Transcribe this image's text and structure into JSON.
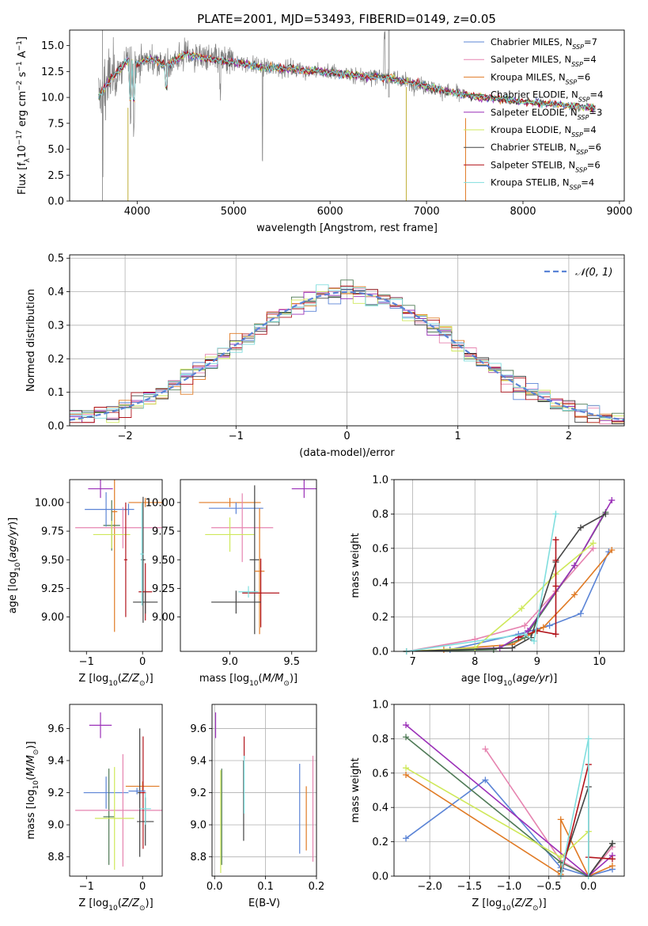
{
  "figure": {
    "title": "PLATE=2001, MJD=53493, FIBERID=0149, z=0.05"
  },
  "chart_data": [
    {
      "id": "spectrum",
      "type": "line",
      "xlabel": "wavelength [Angstrom, rest frame]",
      "ylabel": "Flux [f_λ 10^-17 erg cm^-2 s^-1 A^-1]",
      "xlim": [
        3300,
        9050
      ],
      "ylim": [
        0,
        16.5
      ],
      "xticks": [
        4000,
        5000,
        6000,
        7000,
        8000,
        9000
      ],
      "yticks": [
        0.0,
        2.5,
        5.0,
        7.5,
        10.0,
        12.5,
        15.0
      ],
      "data_color": "#808080",
      "data_range": [
        3600,
        7400
      ],
      "model_range": [
        3600,
        8750
      ],
      "legend_position": "top-right",
      "series": [
        {
          "name": "Chabrier MILES, N_SSP=7",
          "color": "#5b84d6"
        },
        {
          "name": "Salpeter MILES, N_SSP=4",
          "color": "#e684b0"
        },
        {
          "name": "Kroupa MILES, N_SSP=6",
          "color": "#e07a24"
        },
        {
          "name": "Chabrier ELODIE, N_SSP=4",
          "color": "#4f7a56"
        },
        {
          "name": "Salpeter ELODIE, N_SSP=3",
          "color": "#9b30b8"
        },
        {
          "name": "Kroupa ELODIE, N_SSP=4",
          "color": "#cfe85a"
        },
        {
          "name": "Chabrier STELIB, N_SSP=6",
          "color": "#444444"
        },
        {
          "name": "Salpeter STELIB, N_SSP=6",
          "color": "#b2141c"
        },
        {
          "name": "Kroupa STELIB, N_SSP=4",
          "color": "#80dede"
        }
      ],
      "continuum": {
        "x": [
          3600,
          3700,
          3800,
          3900,
          4000,
          4100,
          4200,
          4300,
          4400,
          4500,
          4700,
          4900,
          5100,
          5300,
          5500,
          5800,
          6000,
          6300,
          6600,
          6900,
          7200,
          7500,
          7800,
          8100,
          8400,
          8750
        ],
        "y": [
          10.0,
          11.5,
          12.5,
          13.5,
          13.2,
          13.7,
          13.6,
          13.0,
          13.6,
          14.2,
          13.8,
          13.5,
          13.3,
          12.9,
          12.8,
          12.6,
          12.4,
          12.1,
          11.9,
          11.3,
          10.6,
          10.1,
          9.8,
          9.5,
          9.3,
          9.0
        ]
      }
    },
    {
      "id": "residuals",
      "type": "step-histogram",
      "xlabel": "(data-model)/error",
      "ylabel": "Normed distribution",
      "xlim": [
        -2.5,
        2.5
      ],
      "ylim": [
        0,
        0.51
      ],
      "xticks": [
        -2,
        -1,
        0,
        1,
        2
      ],
      "yticks": [
        0.0,
        0.1,
        0.2,
        0.3,
        0.4,
        0.5
      ],
      "bins": 45,
      "reference_curve": {
        "name": "N(0,1)",
        "label": "𝒩(0, 1)",
        "color": "#5b84d6",
        "style": "dashed"
      },
      "legend_position": "top-right",
      "grid": true
    },
    {
      "id": "age_vs_Z",
      "type": "errorbar",
      "xlabel": "Z [log10(Z/Z⊙)]",
      "ylabel": "age [log10(age/yr)]",
      "xlim": [
        -1.3,
        0.35
      ],
      "ylim": [
        8.7,
        10.2
      ],
      "xticks": [
        -1,
        0
      ],
      "yticks": [
        9.0,
        9.25,
        9.5,
        9.75,
        10.0
      ],
      "points": [
        {
          "color": "#9b30b8",
          "x": -0.75,
          "xerr": 0.22,
          "y": 10.12,
          "yerr": 0.08
        },
        {
          "color": "#e07a24",
          "x": -0.5,
          "xerr": 0.05,
          "y": 9.92,
          "yerr": 1.05
        },
        {
          "color": "#4f7a56",
          "x": -0.55,
          "xerr": 0.15,
          "y": 9.8,
          "yerr": 0.22
        },
        {
          "color": "#5b84d6",
          "x": -0.65,
          "xerr": 0.38,
          "y": 9.94,
          "yerr": 0.15
        },
        {
          "color": "#e684b0",
          "x": -0.35,
          "xerr": 0.85,
          "y": 9.78,
          "yerr": 0.18
        },
        {
          "color": "#cfe85a",
          "x": -0.55,
          "xerr": 0.33,
          "y": 9.72,
          "yerr": 0.12
        },
        {
          "color": "#e07a24",
          "x": 0.05,
          "xerr": 0.3,
          "y": 10.0,
          "yerr": 0.04
        },
        {
          "color": "#444444",
          "x": 0.01,
          "xerr": 0.04,
          "y": 9.5,
          "yerr": 0.55
        },
        {
          "color": "#b2141c",
          "x": 0.05,
          "xerr": 0.12,
          "y": 9.22,
          "yerr": 0.25
        },
        {
          "color": "#444444",
          "x": 0.05,
          "xerr": 0.22,
          "y": 9.13,
          "yerr": 0.1
        },
        {
          "color": "#5b84d6",
          "x": -0.25,
          "xerr": 0.1,
          "y": 9.94,
          "yerr": 0.05
        },
        {
          "color": "#b2141c",
          "x": -0.3,
          "xerr": 0.03,
          "y": 9.5,
          "yerr": 0.5
        },
        {
          "color": "#80dede",
          "x": -0.01,
          "xerr": 0.03,
          "y": 9.55,
          "yerr": 0.45
        }
      ]
    },
    {
      "id": "age_vs_mass",
      "type": "errorbar",
      "xlabel": "mass [log10(M/M⊙)]",
      "ylabel": "",
      "xlim": [
        8.6,
        9.7
      ],
      "ylim": [
        8.7,
        10.2
      ],
      "xticks": [
        9.0,
        9.5
      ],
      "yticks": [
        9.0,
        9.25,
        9.5,
        9.75,
        10.0
      ],
      "points": [
        {
          "color": "#9b30b8",
          "x": 9.6,
          "xerr": 0.1,
          "y": 10.12,
          "yerr": 0.08
        },
        {
          "color": "#e07a24",
          "x": 9.0,
          "xerr": 0.25,
          "y": 10.0,
          "yerr": 0.04
        },
        {
          "color": "#5b84d6",
          "x": 9.05,
          "xerr": 0.22,
          "y": 9.95,
          "yerr": 0.05
        },
        {
          "color": "#e684b0",
          "x": 9.1,
          "xerr": 0.25,
          "y": 9.78,
          "yerr": 0.3
        },
        {
          "color": "#cfe85a",
          "x": 9.0,
          "xerr": 0.2,
          "y": 9.72,
          "yerr": 0.15
        },
        {
          "color": "#444444",
          "x": 9.2,
          "xerr": 0.04,
          "y": 9.5,
          "yerr": 0.65
        },
        {
          "color": "#e07a24",
          "x": 9.24,
          "xerr": 0.04,
          "y": 9.4,
          "yerr": 0.55
        },
        {
          "color": "#b2141c",
          "x": 9.25,
          "xerr": 0.15,
          "y": 9.21,
          "yerr": 0.3
        },
        {
          "color": "#444444",
          "x": 9.05,
          "xerr": 0.2,
          "y": 9.13,
          "yerr": 0.1
        },
        {
          "color": "#80dede",
          "x": 9.15,
          "xerr": 0.08,
          "y": 9.22,
          "yerr": 0.05
        }
      ]
    },
    {
      "id": "massweight_vs_age",
      "type": "line",
      "xlabel": "age [log10(age/yr)]",
      "ylabel": "mass weight",
      "xlim": [
        6.7,
        10.4
      ],
      "ylim": [
        0,
        1.0
      ],
      "xticks": [
        7,
        8,
        9,
        10
      ],
      "yticks": [
        0.0,
        0.2,
        0.4,
        0.6,
        0.8,
        1.0
      ],
      "grid": true,
      "series": [
        {
          "color": "#5b84d6",
          "x": [
            6.9,
            7.6,
            8.7,
            9.2,
            9.7,
            10.15
          ],
          "y": [
            0.0,
            0.01,
            0.1,
            0.15,
            0.22,
            0.58
          ]
        },
        {
          "color": "#e684b0",
          "x": [
            6.9,
            8.0,
            8.8,
            9.3,
            9.9
          ],
          "y": [
            0.0,
            0.07,
            0.15,
            0.35,
            0.6
          ]
        },
        {
          "color": "#e07a24",
          "x": [
            6.9,
            7.5,
            8.6,
            9.1,
            9.6,
            10.2
          ],
          "y": [
            0.0,
            0.01,
            0.04,
            0.14,
            0.33,
            0.59
          ]
        },
        {
          "color": "#4f7a56",
          "x": [
            6.9,
            8.3,
            8.8,
            9.6,
            10.1
          ],
          "y": [
            0.0,
            0.01,
            0.08,
            0.5,
            0.81
          ]
        },
        {
          "color": "#9b30b8",
          "x": [
            6.9,
            8.4,
            8.85,
            9.6,
            10.2
          ],
          "y": [
            0.0,
            0.02,
            0.12,
            0.5,
            0.88
          ]
        },
        {
          "color": "#cfe85a",
          "x": [
            6.9,
            8.0,
            8.75,
            9.3,
            9.9
          ],
          "y": [
            0.0,
            0.02,
            0.25,
            0.45,
            0.63
          ]
        },
        {
          "color": "#444444",
          "x": [
            6.9,
            8.6,
            8.9,
            9.3,
            9.7,
            10.1
          ],
          "y": [
            0.0,
            0.02,
            0.08,
            0.52,
            0.72,
            0.8
          ]
        },
        {
          "color": "#b2141c",
          "x": [
            8.7,
            9.0,
            9.3,
            9.3,
            9.3,
            9.3
          ],
          "y": [
            0.08,
            0.12,
            0.1,
            0.38,
            0.53,
            0.65
          ]
        },
        {
          "color": "#80dede",
          "x": [
            6.9,
            8.8,
            8.95,
            9.3
          ],
          "y": [
            0.0,
            0.1,
            0.06,
            0.8
          ]
        }
      ]
    },
    {
      "id": "mass_vs_Z",
      "type": "errorbar",
      "xlabel": "Z [log10(Z/Z⊙)]",
      "ylabel": "mass [log10(M/M⊙)]",
      "xlim": [
        -1.3,
        0.35
      ],
      "ylim": [
        8.68,
        9.75
      ],
      "xticks": [
        -1,
        0
      ],
      "yticks": [
        8.8,
        9.0,
        9.2,
        9.4,
        9.6
      ],
      "points": [
        {
          "color": "#9b30b8",
          "x": -0.75,
          "xerr": 0.2,
          "y": 9.62,
          "yerr": 0.08
        },
        {
          "color": "#5b84d6",
          "x": -0.65,
          "xerr": 0.4,
          "y": 9.2,
          "yerr": 0.1
        },
        {
          "color": "#4f7a56",
          "x": -0.6,
          "xerr": 0.1,
          "y": 9.05,
          "yerr": 0.3
        },
        {
          "color": "#e684b0",
          "x": -0.35,
          "xerr": 0.85,
          "y": 9.09,
          "yerr": 0.35
        },
        {
          "color": "#cfe85a",
          "x": -0.5,
          "xerr": 0.35,
          "y": 9.04,
          "yerr": 0.32
        },
        {
          "color": "#e07a24",
          "x": 0.0,
          "xerr": 0.3,
          "y": 9.24,
          "yerr": 0.03
        },
        {
          "color": "#444444",
          "x": -0.05,
          "xerr": 0.04,
          "y": 9.2,
          "yerr": 0.4
        },
        {
          "color": "#b2141c",
          "x": 0.01,
          "xerr": 0.05,
          "y": 9.2,
          "yerr": 0.35
        },
        {
          "color": "#444444",
          "x": 0.05,
          "xerr": 0.15,
          "y": 9.02,
          "yerr": 0.15
        },
        {
          "color": "#80dede",
          "x": 0.05,
          "xerr": 0.1,
          "y": 9.1,
          "yerr": 0.1
        },
        {
          "color": "#5b84d6",
          "x": -0.1,
          "xerr": 0.15,
          "y": 9.21,
          "yerr": 0.02
        }
      ]
    },
    {
      "id": "mass_vs_EBV",
      "type": "errorbar",
      "xlabel": "E(B-V)",
      "ylabel": "",
      "xlim": [
        -0.005,
        0.2
      ],
      "ylim": [
        8.68,
        9.75
      ],
      "xticks": [
        0.0,
        0.1,
        0.2
      ],
      "yticks": [
        8.8,
        9.0,
        9.2,
        9.4,
        9.6
      ],
      "grid": true,
      "points": [
        {
          "color": "#9b30b8",
          "x": 0.002,
          "y": 9.62,
          "yerr": 0.08
        },
        {
          "color": "#cfe85a",
          "x": 0.012,
          "y": 9.02,
          "yerr": 0.32
        },
        {
          "color": "#4f7a56",
          "x": 0.014,
          "y": 9.05,
          "yerr": 0.3
        },
        {
          "color": "#b2141c",
          "x": 0.058,
          "y": 9.48,
          "yerr": 0.07
        },
        {
          "color": "#444444",
          "x": 0.057,
          "y": 9.15,
          "yerr": 0.25
        },
        {
          "color": "#80dede",
          "x": 0.058,
          "y": 9.25,
          "yerr": 0.18
        },
        {
          "color": "#5b84d6",
          "x": 0.167,
          "y": 9.1,
          "yerr": 0.28
        },
        {
          "color": "#e07a24",
          "x": 0.18,
          "y": 9.04,
          "yerr": 0.2
        },
        {
          "color": "#e684b0",
          "x": 0.193,
          "y": 9.1,
          "yerr": 0.33
        }
      ]
    },
    {
      "id": "massweight_vs_Z",
      "type": "line",
      "xlabel": "Z [log10(Z/Z⊙)]",
      "ylabel": "mass weight",
      "xlim": [
        -2.45,
        0.45
      ],
      "ylim": [
        0,
        1.0
      ],
      "xticks": [
        -2.0,
        -1.5,
        -1.0,
        -0.5,
        0.0
      ],
      "yticks": [
        0.0,
        0.2,
        0.4,
        0.6,
        0.8,
        1.0
      ],
      "grid": true,
      "series": [
        {
          "color": "#5b84d6",
          "x": [
            -2.3,
            -1.3,
            -0.35,
            0.0,
            0.3
          ],
          "y": [
            0.22,
            0.56,
            0.05,
            0.0,
            0.04
          ]
        },
        {
          "color": "#e684b0",
          "x": [
            -1.3,
            -0.35,
            0.0,
            0.3
          ],
          "y": [
            0.74,
            0.09,
            0.0,
            0.17
          ]
        },
        {
          "color": "#e07a24",
          "x": [
            -2.3,
            -0.35,
            -0.35,
            0.0,
            0.3
          ],
          "y": [
            0.59,
            0.01,
            0.33,
            0.0,
            0.06
          ]
        },
        {
          "color": "#4f7a56",
          "x": [
            -2.3,
            -0.35,
            0.0,
            0.3
          ],
          "y": [
            0.81,
            0.08,
            0.0,
            0.19
          ]
        },
        {
          "color": "#9b30b8",
          "x": [
            -2.3,
            0.0,
            0.3
          ],
          "y": [
            0.88,
            0.0,
            0.12
          ]
        },
        {
          "color": "#cfe85a",
          "x": [
            -2.3,
            -0.35,
            0.0,
            0.0
          ],
          "y": [
            0.63,
            0.11,
            0.26,
            0.0
          ]
        },
        {
          "color": "#444444",
          "x": [
            -0.35,
            0.0,
            0.0,
            0.3
          ],
          "y": [
            0.03,
            0.52,
            0.0,
            0.19
          ]
        },
        {
          "color": "#b2141c",
          "x": [
            -0.35,
            0.0,
            0.0,
            0.3
          ],
          "y": [
            0.0,
            0.65,
            0.11,
            0.1
          ]
        },
        {
          "color": "#80dede",
          "x": [
            -0.35,
            0.0,
            0.0
          ],
          "y": [
            0.0,
            0.8,
            0.0
          ]
        }
      ]
    }
  ]
}
